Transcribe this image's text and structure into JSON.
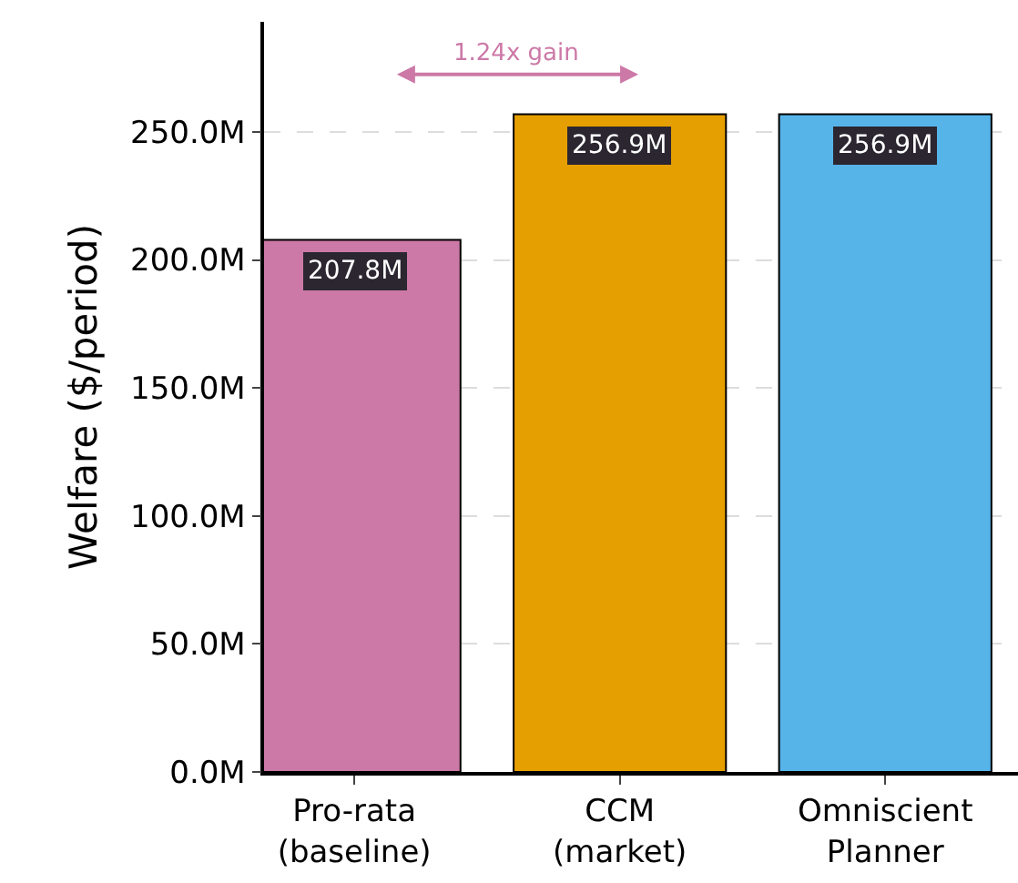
{
  "chart_data": {
    "type": "bar",
    "ylabel": "Welfare ($/period)",
    "categories": [
      "Pro-rata\n(baseline)",
      "CCM\n(market)",
      "Omniscient\nPlanner"
    ],
    "values": [
      207.8,
      256.9,
      256.9
    ],
    "colors": [
      "#cc79a7",
      "#e69f00",
      "#56b4e9"
    ],
    "value_labels": [
      "207.8M",
      "256.9M",
      "256.9M"
    ],
    "ylim": [
      0,
      293
    ],
    "yticks": [
      {
        "value": 0,
        "label": "0.0M"
      },
      {
        "value": 50,
        "label": "50.0M"
      },
      {
        "value": 100,
        "label": "100.0M"
      },
      {
        "value": 150,
        "label": "150.0M"
      },
      {
        "value": 200,
        "label": "200.0M"
      },
      {
        "value": 250,
        "label": "250.0M"
      }
    ],
    "grid": "y",
    "annotations": [
      "1.24x gain"
    ]
  }
}
